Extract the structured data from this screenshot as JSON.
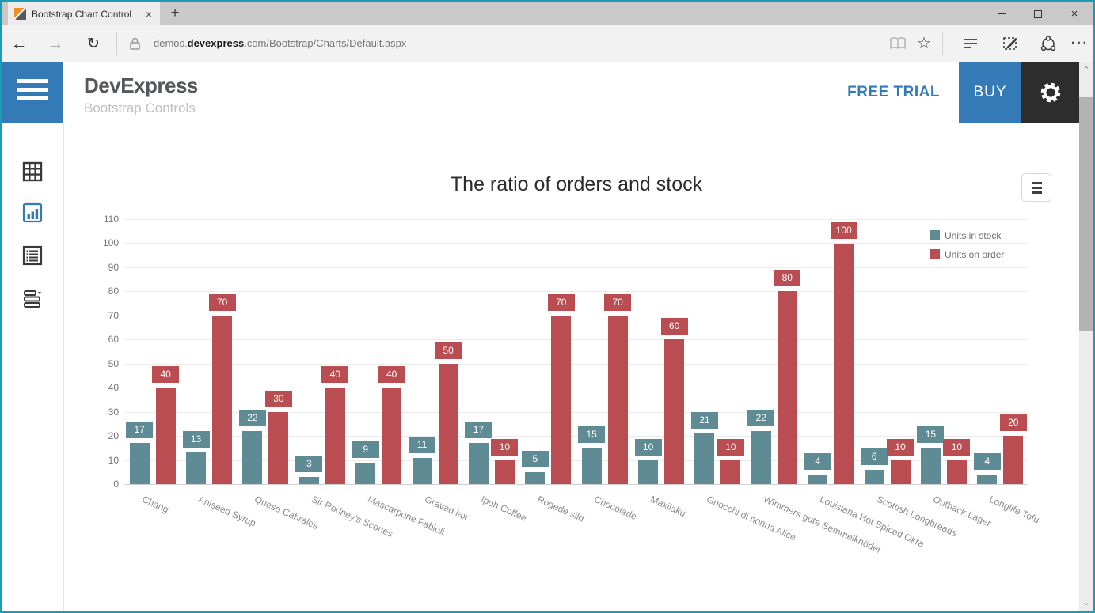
{
  "colors": {
    "accent_blue": "#337ab7",
    "window_border": "#1b9cb4",
    "gear_bg": "#2d2d2d",
    "titlebar": "#c9c9c9"
  },
  "browser": {
    "tab": {
      "title": "Bootstrap Chart Control",
      "close": "×",
      "new_tab": "+"
    },
    "window_controls": {
      "minimize": "minimize",
      "maximize": "maximize",
      "close": "×"
    },
    "address": {
      "prefix": "demos.",
      "domain": "devexpress",
      "path": ".com/Bootstrap/Charts/Default.aspx"
    },
    "icons": {
      "back": "←",
      "forward": "→",
      "refresh": "↻",
      "star": "☆",
      "more": "···"
    }
  },
  "header": {
    "brand": "DevExpress",
    "subtitle": "Bootstrap Controls",
    "free_trial": "FREE TRIAL",
    "buy": "BUY"
  },
  "sidebar": {
    "items": [
      {
        "id": "grids",
        "active": false
      },
      {
        "id": "charts",
        "active": true
      },
      {
        "id": "data-display",
        "active": false
      },
      {
        "id": "editors",
        "active": false
      }
    ]
  },
  "chart_data": {
    "type": "bar",
    "title": "The ratio of orders and stock",
    "categories": [
      "Chang",
      "Aniseed Syrup",
      "Queso Cabrales",
      "Sir Rodney's Scones",
      "Mascarpone Fabioli",
      "Gravad lax",
      "Ipoh Coffee",
      "Rogede sild",
      "Chocolade",
      "Maxilaku",
      "Gnocchi di nonna Alice",
      "Wimmers gute Semmelknödel",
      "Louisiana Hot Spiced Okra",
      "Scottish Longbreads",
      "Outback Lager",
      "Longlife Tofu"
    ],
    "series": [
      {
        "name": "Units in stock",
        "color": "#5f8b95",
        "values": [
          17,
          13,
          22,
          3,
          9,
          11,
          17,
          5,
          15,
          10,
          21,
          22,
          4,
          6,
          15,
          4
        ]
      },
      {
        "name": "Units on order",
        "color": "#ba4d51",
        "values": [
          40,
          70,
          30,
          40,
          40,
          50,
          10,
          70,
          70,
          60,
          10,
          80,
          100,
          10,
          10,
          20
        ]
      }
    ],
    "xlabel": "",
    "ylabel": "",
    "ylim": [
      0,
      110
    ],
    "ytick_step": 10,
    "grid": true,
    "legend_position": "top-right",
    "value_labels": true,
    "x_label_rotation_deg": 24
  }
}
